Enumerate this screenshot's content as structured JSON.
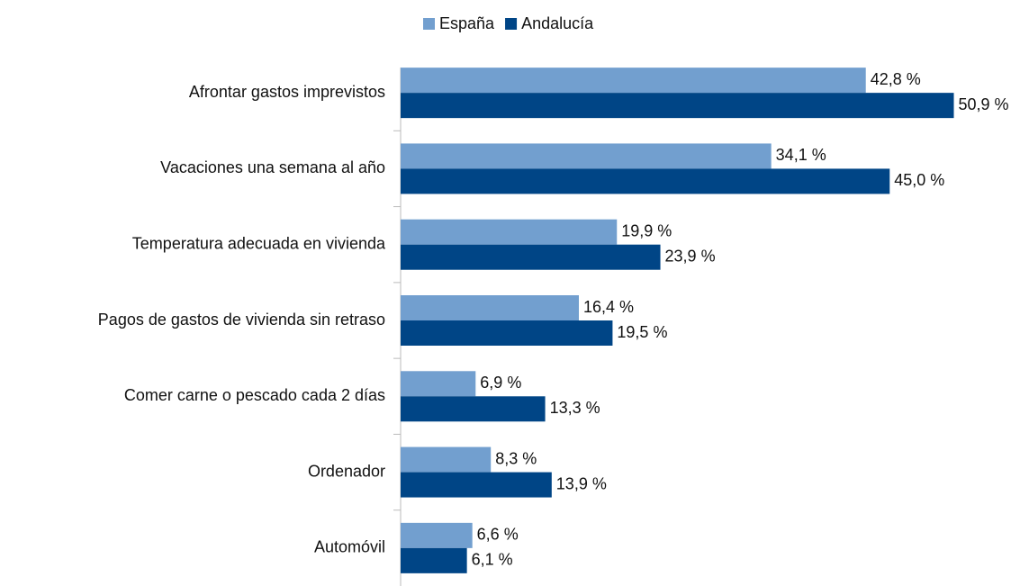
{
  "chart_data": {
    "type": "hbar",
    "categories": [
      "Afrontar gastos imprevistos",
      "Vacaciones una semana al año",
      "Temperatura adecuada en vivienda",
      "Pagos de gastos de vivienda sin retraso",
      "Comer carne o pescado cada 2 días",
      "Ordenador",
      "Automóvil"
    ],
    "series": [
      {
        "name": "España",
        "color": "#729fcf",
        "values": [
          42.8,
          34.1,
          19.9,
          16.4,
          6.9,
          8.3,
          6.6
        ],
        "value_labels": [
          "42,8 %",
          "34,1 %",
          "19,9 %",
          "16,4 %",
          "6,9 %",
          "8,3 %",
          "6,6 %"
        ]
      },
      {
        "name": "Andalucía",
        "color": "#004586",
        "values": [
          50.9,
          45.0,
          23.9,
          19.5,
          13.3,
          13.9,
          6.1
        ],
        "value_labels": [
          "50,9 %",
          "45,0 %",
          "23,9 %",
          "19,5 %",
          "13,3 %",
          "13,9 %",
          "6,1 %"
        ]
      }
    ],
    "xlim": [
      0,
      55
    ],
    "legend": "top"
  }
}
